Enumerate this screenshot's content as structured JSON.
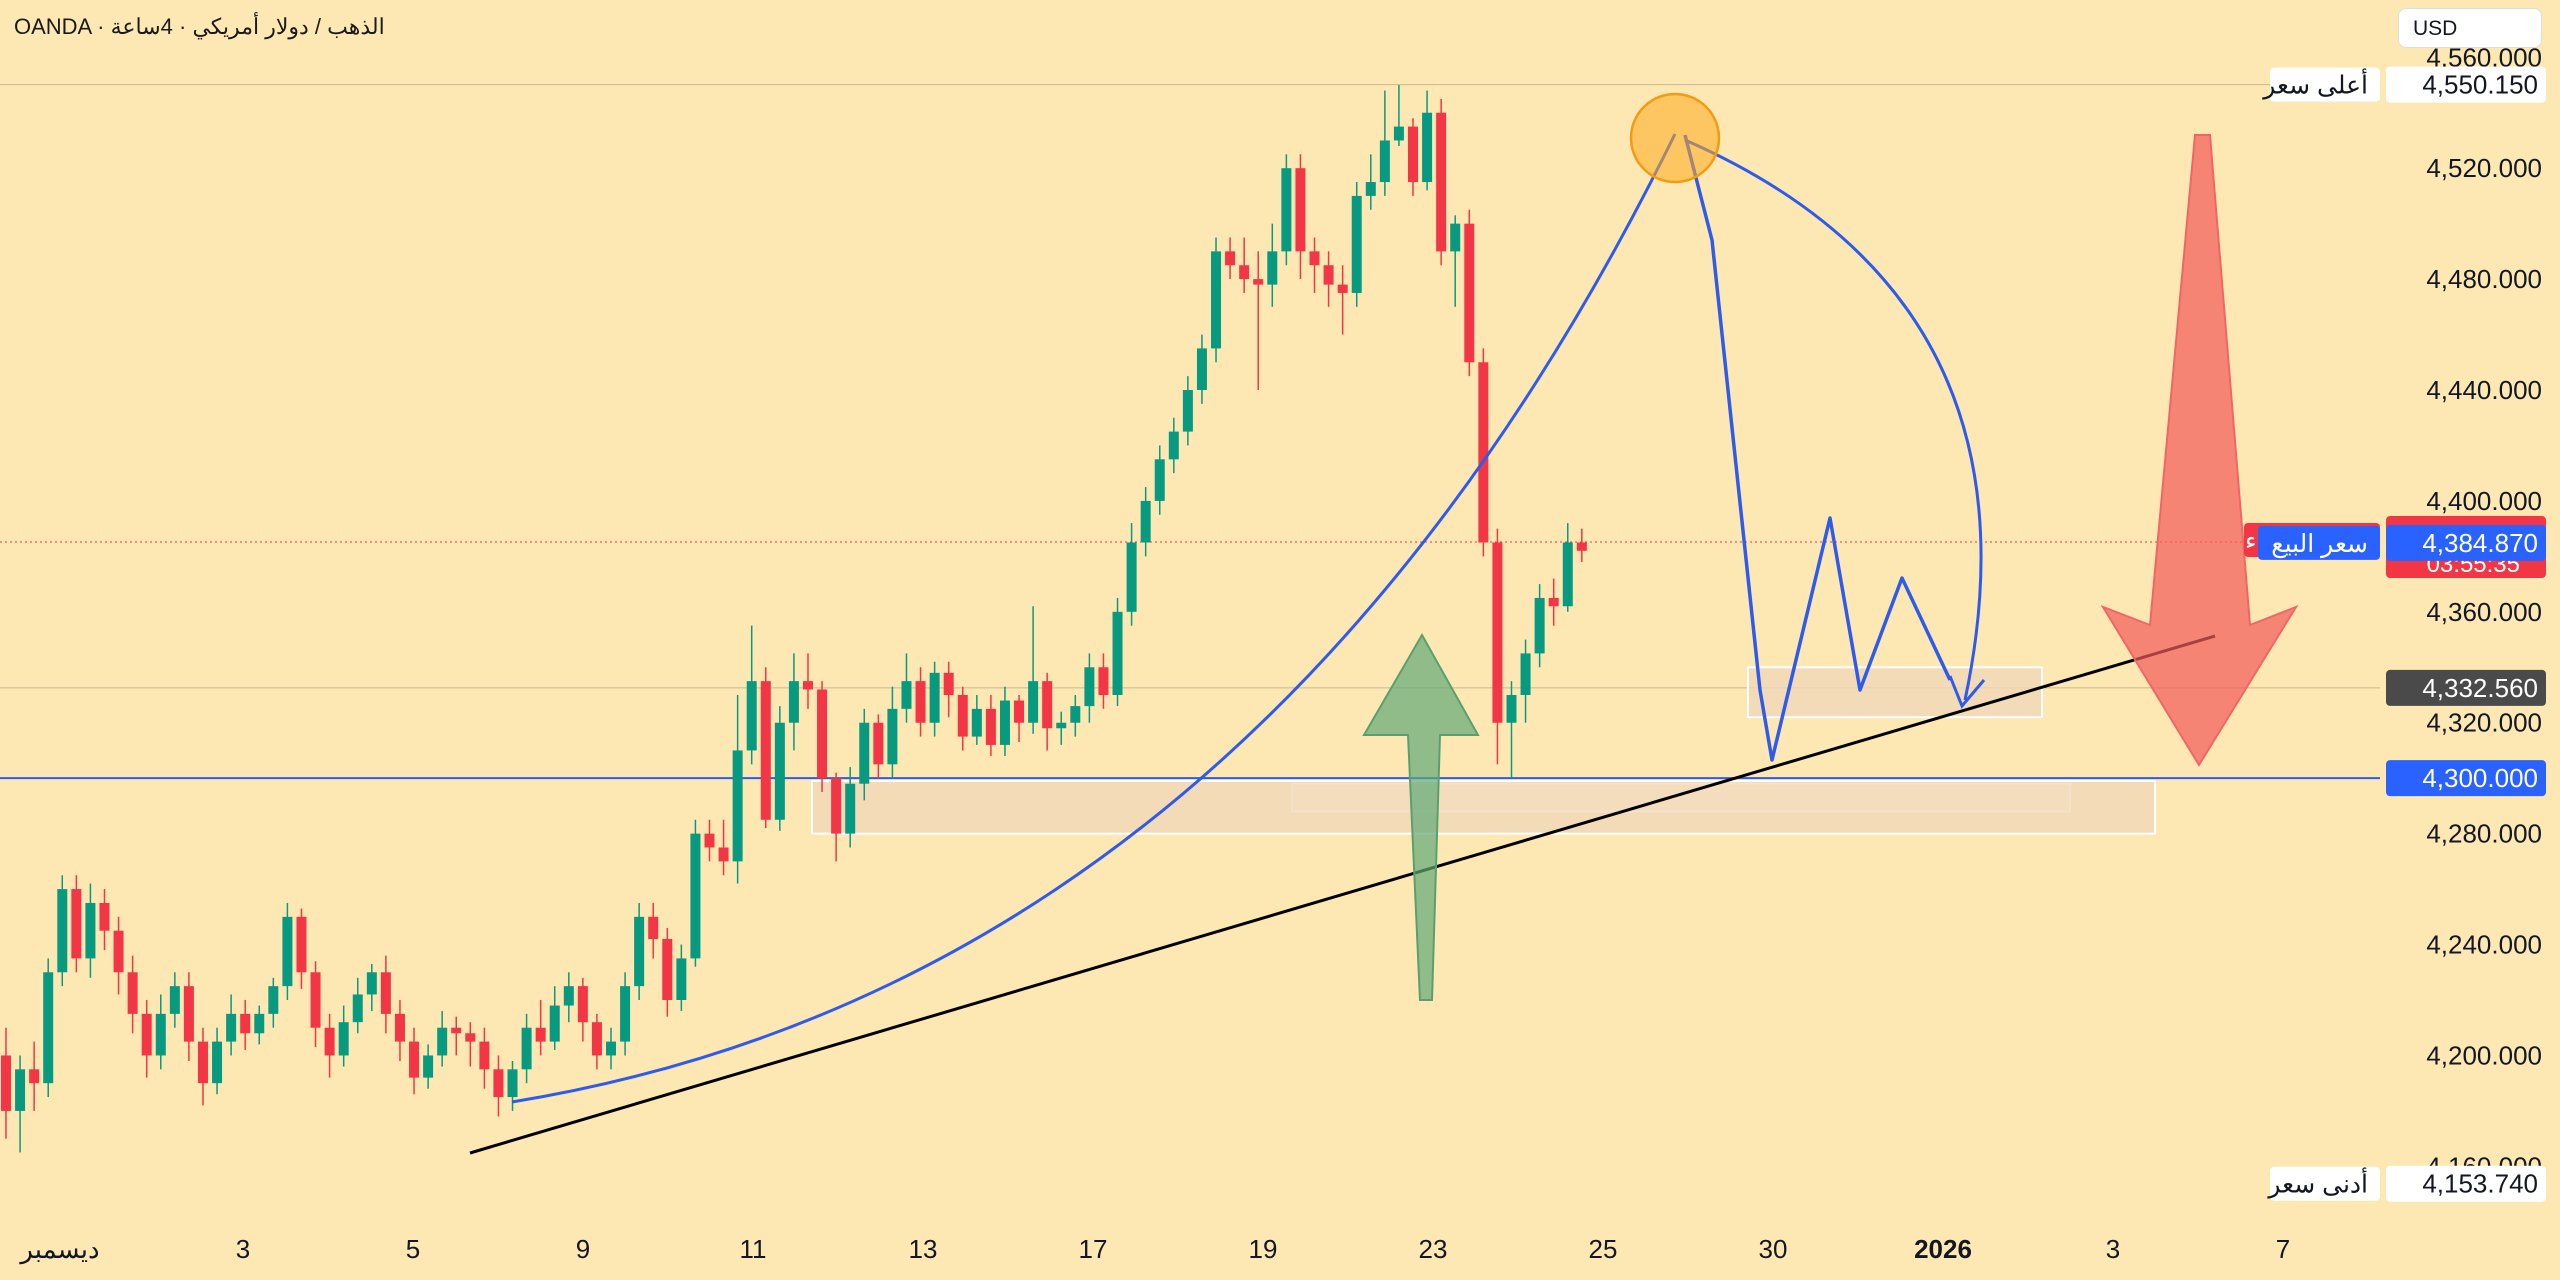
{
  "header": {
    "title": "OANDA · الذهب / دولار أمريكي · 4ساعة",
    "currency": "USD"
  },
  "colors": {
    "background": "#fde8b3",
    "up_candle": "#089981",
    "down_candle": "#f23645",
    "drawing_blue": "#2f5bea",
    "trendline": "#000000",
    "buy_label": "#f23645",
    "sell_label": "#2962ff",
    "green_arrow": "#7db38a",
    "red_arrow": "#f26b6b"
  },
  "chart_data": {
    "type": "candlestick",
    "instrument": "XAU/USD",
    "timeframe": "4h",
    "x_ticks": [
      "ديسمبر",
      "3",
      "5",
      "9",
      "11",
      "13",
      "17",
      "19",
      "23",
      "25",
      "30",
      "2026",
      "3",
      "7"
    ],
    "y_ticks": [
      4160,
      4200,
      4240,
      4280,
      4320,
      4360,
      4400,
      4440,
      4480,
      4520,
      4560
    ],
    "ylim": [
      4132,
      4572
    ],
    "series": [
      {
        "values": [
          [
            4200,
            4180,
            4210,
            4170
          ],
          [
            4180,
            4195,
            4200,
            4165
          ],
          [
            4195,
            4190,
            4205,
            4180
          ],
          [
            4190,
            4230,
            4235,
            4185
          ],
          [
            4230,
            4260,
            4265,
            4225
          ],
          [
            4260,
            4235,
            4265,
            4230
          ],
          [
            4235,
            4255,
            4262,
            4228
          ],
          [
            4255,
            4245,
            4260,
            4238
          ],
          [
            4245,
            4230,
            4250,
            4222
          ],
          [
            4230,
            4215,
            4236,
            4208
          ],
          [
            4215,
            4200,
            4220,
            4192
          ],
          [
            4200,
            4215,
            4222,
            4195
          ],
          [
            4215,
            4225,
            4230,
            4210
          ],
          [
            4225,
            4205,
            4230,
            4198
          ],
          [
            4205,
            4190,
            4210,
            4182
          ],
          [
            4190,
            4205,
            4210,
            4186
          ],
          [
            4205,
            4215,
            4222,
            4200
          ],
          [
            4215,
            4208,
            4220,
            4202
          ],
          [
            4208,
            4215,
            4218,
            4204
          ],
          [
            4215,
            4225,
            4228,
            4210
          ],
          [
            4225,
            4250,
            4255,
            4220
          ],
          [
            4250,
            4230,
            4253,
            4224
          ],
          [
            4230,
            4210,
            4234,
            4203
          ],
          [
            4210,
            4200,
            4215,
            4192
          ],
          [
            4200,
            4212,
            4218,
            4196
          ],
          [
            4212,
            4222,
            4228,
            4208
          ],
          [
            4222,
            4230,
            4233,
            4216
          ],
          [
            4230,
            4215,
            4236,
            4208
          ],
          [
            4215,
            4205,
            4220,
            4198
          ],
          [
            4205,
            4192,
            4210,
            4186
          ],
          [
            4192,
            4200,
            4204,
            4188
          ],
          [
            4200,
            4210,
            4216,
            4196
          ],
          [
            4210,
            4208,
            4214,
            4200
          ],
          [
            4208,
            4205,
            4212,
            4196
          ],
          [
            4205,
            4195,
            4210,
            4188
          ],
          [
            4195,
            4185,
            4200,
            4178
          ],
          [
            4185,
            4195,
            4198,
            4180
          ],
          [
            4195,
            4210,
            4215,
            4190
          ],
          [
            4210,
            4205,
            4220,
            4200
          ],
          [
            4205,
            4218,
            4225,
            4202
          ],
          [
            4218,
            4225,
            4230,
            4212
          ],
          [
            4225,
            4212,
            4228,
            4205
          ],
          [
            4212,
            4200,
            4215,
            4195
          ],
          [
            4200,
            4205,
            4210,
            4195
          ],
          [
            4205,
            4225,
            4230,
            4200
          ],
          [
            4225,
            4250,
            4255,
            4220
          ],
          [
            4250,
            4242,
            4255,
            4235
          ],
          [
            4242,
            4220,
            4246,
            4214
          ],
          [
            4220,
            4235,
            4240,
            4216
          ],
          [
            4235,
            4280,
            4285,
            4232
          ],
          [
            4280,
            4275,
            4285,
            4270
          ],
          [
            4275,
            4270,
            4285,
            4265
          ],
          [
            4270,
            4310,
            4330,
            4262
          ],
          [
            4310,
            4335,
            4355,
            4305
          ],
          [
            4335,
            4285,
            4340,
            4282
          ],
          [
            4285,
            4320,
            4326,
            4281
          ],
          [
            4320,
            4335,
            4345,
            4310
          ],
          [
            4335,
            4332,
            4345,
            4325
          ],
          [
            4332,
            4300,
            4335,
            4295
          ],
          [
            4300,
            4280,
            4302,
            4270
          ],
          [
            4280,
            4298,
            4304,
            4275
          ],
          [
            4298,
            4320,
            4325,
            4292
          ],
          [
            4320,
            4305,
            4323,
            4300
          ],
          [
            4305,
            4325,
            4333,
            4300
          ],
          [
            4325,
            4335,
            4345,
            4320
          ],
          [
            4335,
            4320,
            4340,
            4315
          ],
          [
            4320,
            4338,
            4342,
            4315
          ],
          [
            4338,
            4330,
            4342,
            4322
          ],
          [
            4330,
            4315,
            4333,
            4310
          ],
          [
            4315,
            4325,
            4330,
            4312
          ],
          [
            4325,
            4312,
            4330,
            4308
          ],
          [
            4312,
            4328,
            4333,
            4308
          ],
          [
            4328,
            4320,
            4330,
            4313
          ],
          [
            4320,
            4335,
            4362,
            4316
          ],
          [
            4335,
            4318,
            4338,
            4310
          ],
          [
            4318,
            4320,
            4324,
            4312
          ],
          [
            4320,
            4326,
            4330,
            4315
          ],
          [
            4326,
            4340,
            4345,
            4320
          ],
          [
            4340,
            4330,
            4345,
            4325
          ],
          [
            4330,
            4360,
            4365,
            4326
          ],
          [
            4360,
            4385,
            4392,
            4355
          ],
          [
            4385,
            4400,
            4405,
            4380
          ],
          [
            4400,
            4415,
            4420,
            4395
          ],
          [
            4415,
            4425,
            4430,
            4410
          ],
          [
            4425,
            4440,
            4445,
            4420
          ],
          [
            4440,
            4455,
            4460,
            4435
          ],
          [
            4455,
            4490,
            4495,
            4450
          ],
          [
            4490,
            4485,
            4495,
            4480
          ],
          [
            4485,
            4480,
            4495,
            4475
          ],
          [
            4480,
            4478,
            4490,
            4440
          ],
          [
            4478,
            4490,
            4500,
            4470
          ],
          [
            4490,
            4520,
            4525,
            4485
          ],
          [
            4520,
            4490,
            4525,
            4480
          ],
          [
            4490,
            4485,
            4495,
            4475
          ],
          [
            4485,
            4478,
            4490,
            4470
          ],
          [
            4478,
            4475,
            4485,
            4460
          ],
          [
            4475,
            4510,
            4515,
            4470
          ],
          [
            4510,
            4515,
            4525,
            4505
          ],
          [
            4515,
            4530,
            4548,
            4510
          ],
          [
            4530,
            4535,
            4550,
            4528
          ],
          [
            4535,
            4515,
            4538,
            4510
          ],
          [
            4515,
            4540,
            4548,
            4512
          ],
          [
            4540,
            4490,
            4545,
            4485
          ],
          [
            4490,
            4500,
            4503,
            4470
          ],
          [
            4500,
            4450,
            4505,
            4445
          ],
          [
            4450,
            4385,
            4455,
            4380
          ],
          [
            4385,
            4320,
            4390,
            4305
          ],
          [
            4320,
            4330,
            4335,
            4300
          ],
          [
            4330,
            4345,
            4350,
            4320
          ],
          [
            4345,
            4365,
            4370,
            4340
          ],
          [
            4365,
            4362,
            4372,
            4355
          ],
          [
            4362,
            4385,
            4392,
            4360
          ],
          [
            4385,
            4382,
            4390,
            4378
          ]
        ]
      }
    ],
    "price_labels": [
      {
        "name": "high",
        "label": "أعلى سعر",
        "value": "4,550.150",
        "price": 4550.15
      },
      {
        "name": "buy",
        "label": "سعر الشراء",
        "value": "4,385.910",
        "price": 4385.91
      },
      {
        "name": "last",
        "value": "4,385.170",
        "countdown": "03:55:35",
        "price": 4385.17
      },
      {
        "name": "sell",
        "label": "سعر البيع",
        "value": "4,384.870",
        "price": 4384.87
      },
      {
        "name": "level-4332",
        "value": "4,332.560",
        "price": 4332.56
      },
      {
        "name": "level-4300",
        "value": "4,300.000",
        "price": 4300
      },
      {
        "name": "low",
        "label": "أدنى سعر",
        "value": "4,153.740",
        "price": 4153.74
      }
    ],
    "zones": [
      {
        "name": "zone-resistance",
        "from_candle": 49,
        "to_candle": 107,
        "from_price": 4298,
        "to_price": 4288
      },
      {
        "name": "zone-support-main",
        "from_candle": 30,
        "to_candle": 102,
        "from_price": 4299,
        "to_price": 4280
      },
      {
        "name": "zone-support-small",
        "from_candle": 66,
        "to_candle": 78,
        "from_price": 4340,
        "to_price": 4322
      }
    ],
    "trendline": {
      "from": {
        "candle": 17,
        "price": 4153.74
      },
      "to": {
        "candle": 84,
        "price": 4350
      }
    }
  }
}
